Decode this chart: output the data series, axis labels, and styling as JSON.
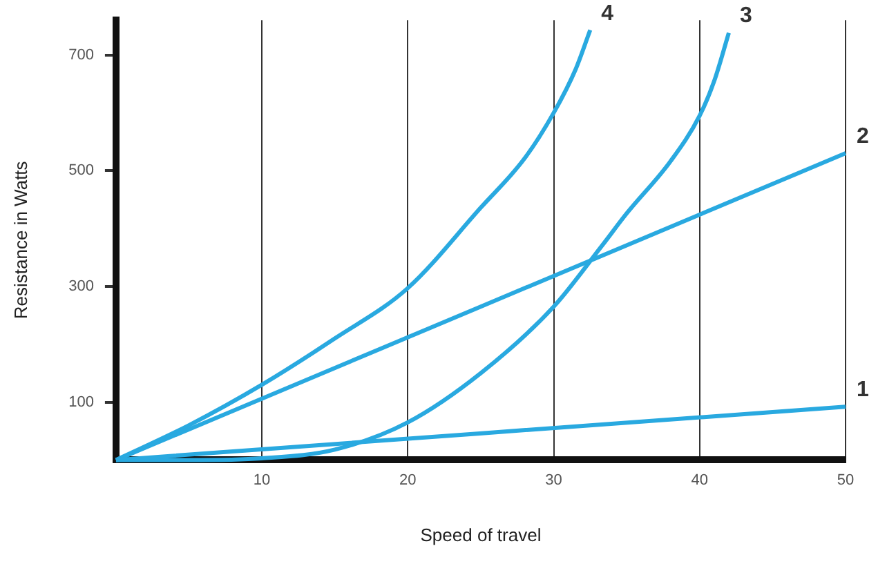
{
  "chart_data": {
    "type": "line",
    "xlabel": "Speed of travel",
    "ylabel": "Resistance in Watts",
    "xlim": [
      0,
      50
    ],
    "ylim": [
      0,
      760
    ],
    "xticks": [
      10,
      20,
      30,
      40,
      50
    ],
    "yticks": [
      100,
      300,
      500,
      700
    ],
    "grid": "x",
    "legend": false,
    "marker": "none",
    "line_style": "solid",
    "series": [
      {
        "name": "1",
        "color": "#29a9e0",
        "x": [
          0,
          50
        ],
        "values": [
          0,
          92
        ]
      },
      {
        "name": "2",
        "color": "#29a9e0",
        "x": [
          0,
          50
        ],
        "values": [
          0,
          530
        ]
      },
      {
        "name": "3",
        "color": "#29a9e0",
        "x": [
          0,
          5,
          10,
          15,
          20,
          25,
          30,
          33.3,
          35,
          38,
          40,
          41,
          42
        ],
        "values": [
          0,
          0,
          3,
          18,
          65,
          150,
          265,
          370,
          426,
          516,
          595,
          655,
          738
        ]
      },
      {
        "name": "4",
        "color": "#29a9e0",
        "x": [
          0,
          5,
          10,
          15,
          20,
          25,
          28,
          30,
          31.5,
          32.5
        ],
        "values": [
          0,
          60,
          130,
          210,
          297,
          436,
          521,
          600,
          675,
          743
        ]
      }
    ]
  }
}
